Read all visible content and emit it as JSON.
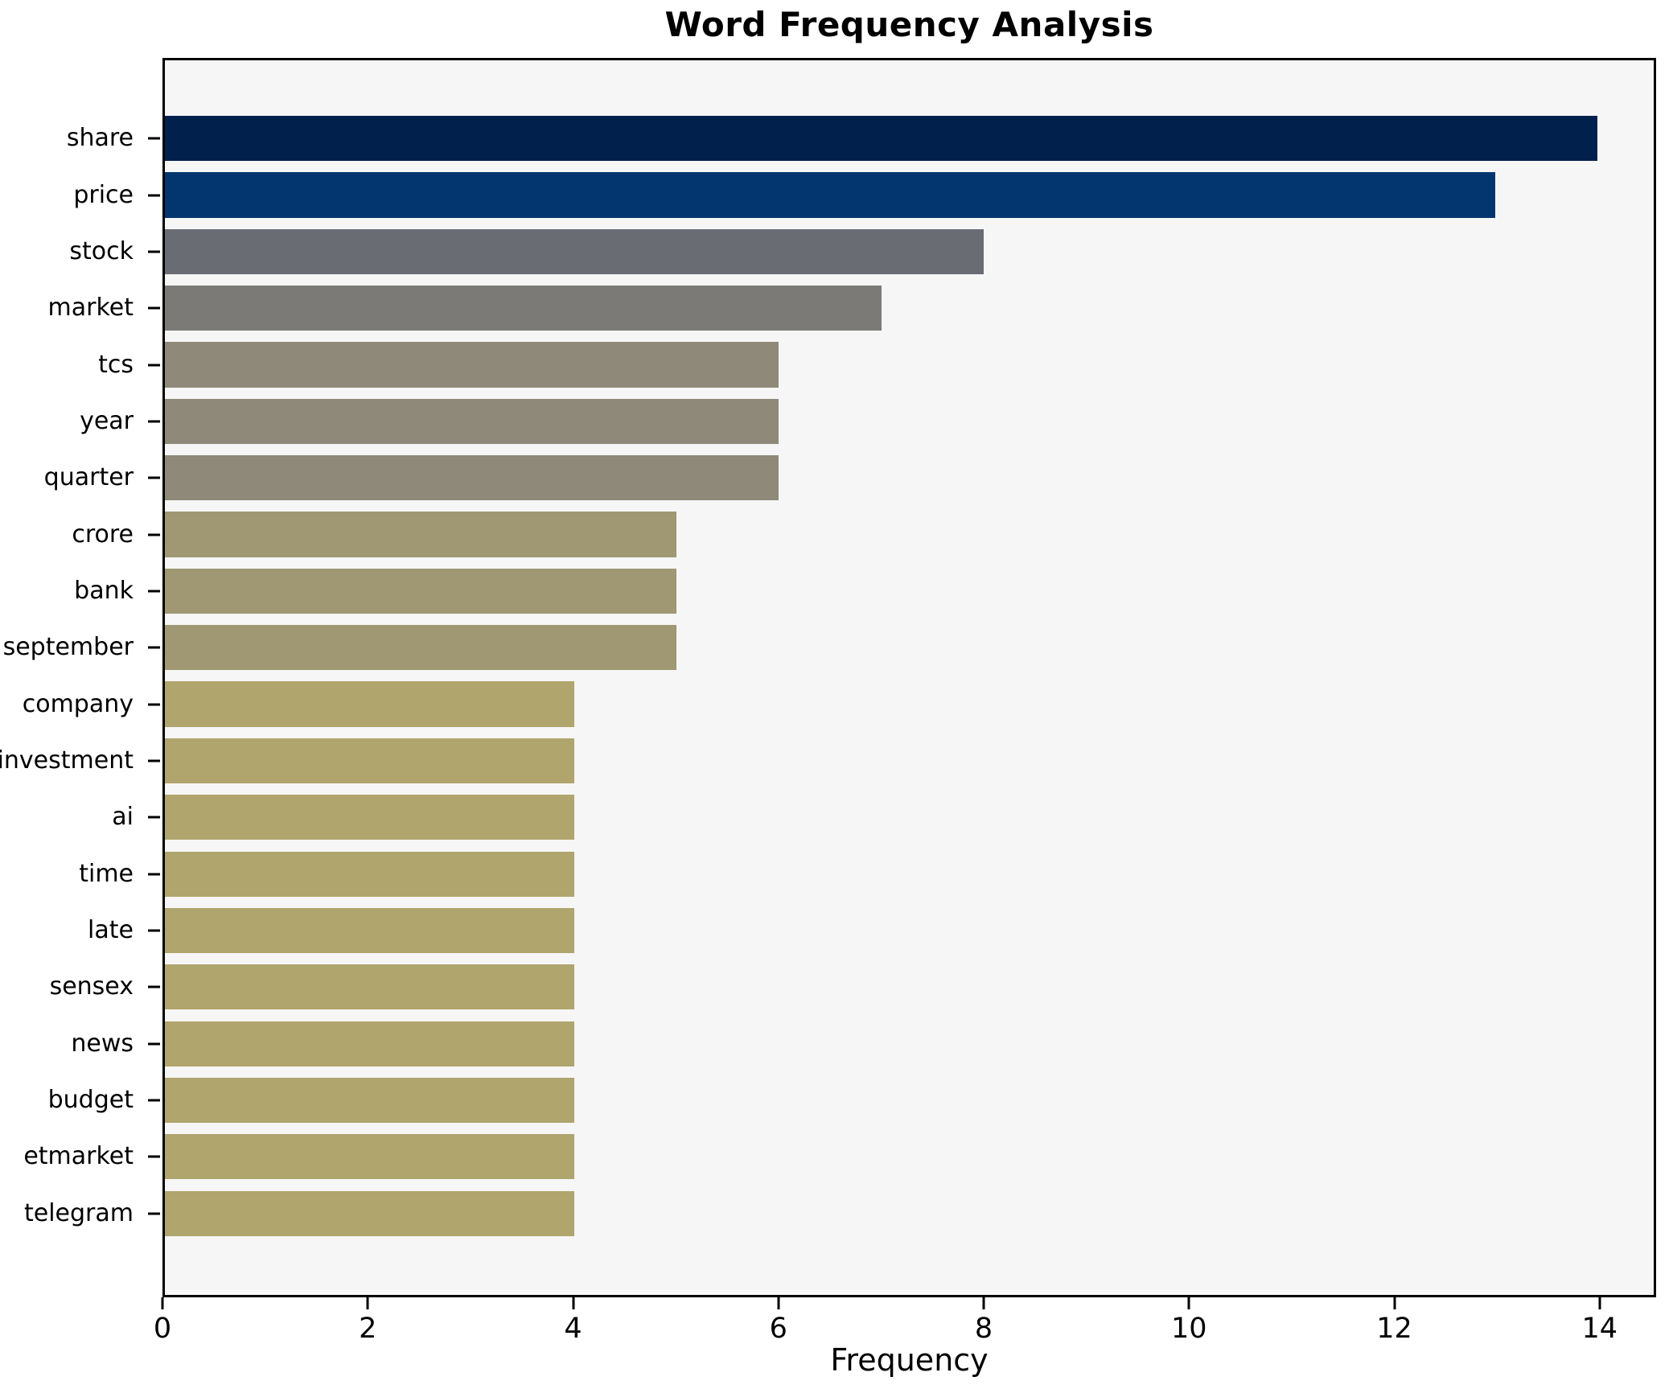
{
  "chart_data": {
    "type": "bar",
    "orientation": "horizontal",
    "title": "Word Frequency Analysis",
    "xlabel": "Frequency",
    "ylabel": "",
    "categories": [
      "share",
      "price",
      "stock",
      "market",
      "tcs",
      "year",
      "quarter",
      "crore",
      "bank",
      "september",
      "company",
      "investment",
      "ai",
      "time",
      "late",
      "sensex",
      "news",
      "budget",
      "etmarket",
      "telegram"
    ],
    "values": [
      14,
      13,
      8,
      7,
      6,
      6,
      6,
      5,
      5,
      5,
      4,
      4,
      4,
      4,
      4,
      4,
      4,
      4,
      4,
      4
    ],
    "bar_colors": [
      "#01214c",
      "#03356e",
      "#696d73",
      "#7b7a76",
      "#8e8978",
      "#8e8978",
      "#8e8978",
      "#9f9873",
      "#9f9873",
      "#9f9873",
      "#b0a56d",
      "#b0a56d",
      "#b0a56d",
      "#b0a56d",
      "#b0a56d",
      "#b0a56d",
      "#b0a56d",
      "#b0a56d",
      "#b0a56d",
      "#b0a56d"
    ],
    "xlim": [
      0,
      14.55
    ],
    "xticks": [
      0,
      2,
      4,
      6,
      8,
      10,
      12,
      14
    ],
    "grid": false,
    "legend": "none",
    "plot_background": "#f6f6f7",
    "figure_background": "#ffffff",
    "colormap": "cividis",
    "accent_dark": "#01214c",
    "accent_khaki": "#b0a56d"
  }
}
